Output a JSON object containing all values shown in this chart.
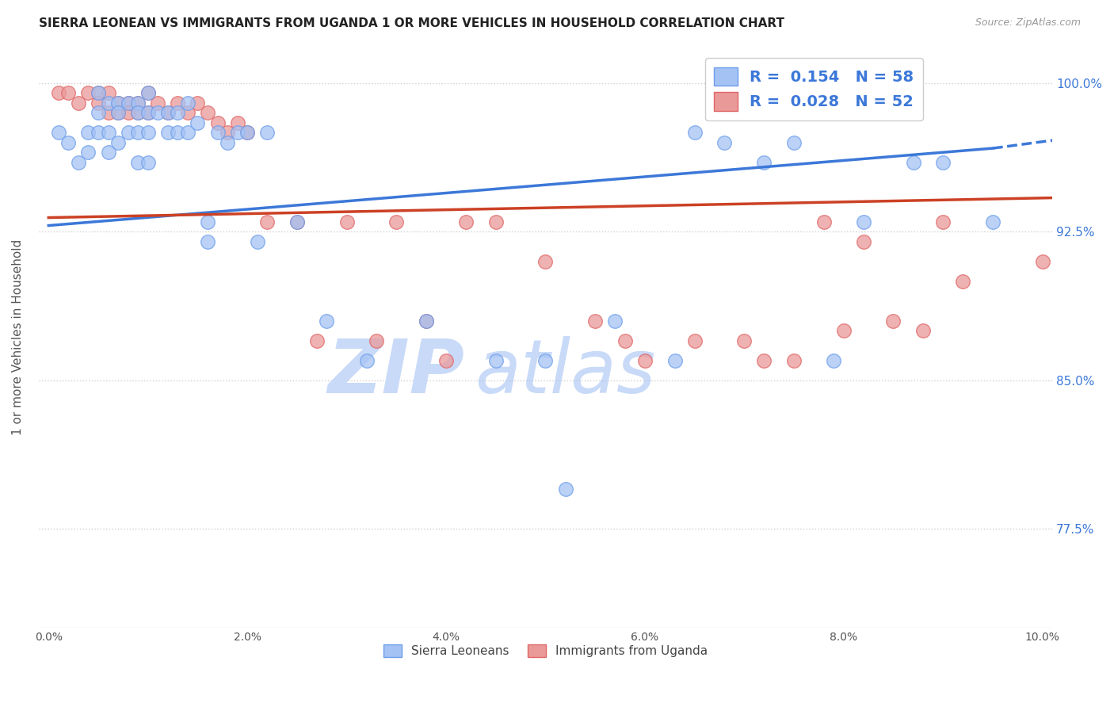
{
  "title": "SIERRA LEONEAN VS IMMIGRANTS FROM UGANDA 1 OR MORE VEHICLES IN HOUSEHOLD CORRELATION CHART",
  "source": "Source: ZipAtlas.com",
  "ylabel": "1 or more Vehicles in Household",
  "ylim": [
    0.725,
    1.018
  ],
  "xlim": [
    -0.001,
    0.101
  ],
  "right_ytick_labels": [
    "77.5%",
    "85.0%",
    "92.5%",
    "100.0%"
  ],
  "right_yticks": [
    0.775,
    0.85,
    0.925,
    1.0
  ],
  "title_fontsize": 11,
  "source_fontsize": 9,
  "blue_color": "#a4c2f4",
  "pink_color": "#ea9999",
  "blue_edge_color": "#6d9eeb",
  "pink_edge_color": "#e06666",
  "blue_line_color": "#3c78d8",
  "pink_line_color": "#cc4125",
  "legend_R1": "0.154",
  "legend_N1": "58",
  "legend_R2": "0.028",
  "legend_N2": "52",
  "blue_scatter_x": [
    0.001,
    0.002,
    0.003,
    0.004,
    0.004,
    0.005,
    0.005,
    0.005,
    0.006,
    0.006,
    0.006,
    0.007,
    0.007,
    0.007,
    0.008,
    0.008,
    0.009,
    0.009,
    0.009,
    0.009,
    0.01,
    0.01,
    0.01,
    0.01,
    0.011,
    0.012,
    0.012,
    0.013,
    0.013,
    0.014,
    0.014,
    0.015,
    0.016,
    0.016,
    0.017,
    0.018,
    0.019,
    0.02,
    0.021,
    0.022,
    0.025,
    0.028,
    0.032,
    0.038,
    0.045,
    0.05,
    0.052,
    0.057,
    0.063,
    0.065,
    0.068,
    0.072,
    0.075,
    0.079,
    0.082,
    0.087,
    0.09,
    0.095
  ],
  "blue_scatter_y": [
    0.975,
    0.97,
    0.96,
    0.975,
    0.965,
    0.995,
    0.985,
    0.975,
    0.99,
    0.975,
    0.965,
    0.99,
    0.985,
    0.97,
    0.99,
    0.975,
    0.99,
    0.985,
    0.975,
    0.96,
    0.995,
    0.985,
    0.975,
    0.96,
    0.985,
    0.985,
    0.975,
    0.985,
    0.975,
    0.99,
    0.975,
    0.98,
    0.93,
    0.92,
    0.975,
    0.97,
    0.975,
    0.975,
    0.92,
    0.975,
    0.93,
    0.88,
    0.86,
    0.88,
    0.86,
    0.86,
    0.795,
    0.88,
    0.86,
    0.975,
    0.97,
    0.96,
    0.97,
    0.86,
    0.93,
    0.96,
    0.96,
    0.93
  ],
  "pink_scatter_x": [
    0.001,
    0.002,
    0.003,
    0.004,
    0.005,
    0.005,
    0.006,
    0.006,
    0.007,
    0.007,
    0.008,
    0.008,
    0.009,
    0.009,
    0.01,
    0.01,
    0.011,
    0.012,
    0.013,
    0.014,
    0.015,
    0.016,
    0.017,
    0.018,
    0.019,
    0.02,
    0.022,
    0.025,
    0.027,
    0.03,
    0.033,
    0.035,
    0.038,
    0.04,
    0.042,
    0.045,
    0.05,
    0.055,
    0.058,
    0.06,
    0.065,
    0.07,
    0.072,
    0.075,
    0.078,
    0.08,
    0.082,
    0.085,
    0.088,
    0.09,
    0.092,
    0.1
  ],
  "pink_scatter_y": [
    0.995,
    0.995,
    0.99,
    0.995,
    0.995,
    0.99,
    0.995,
    0.985,
    0.99,
    0.985,
    0.99,
    0.985,
    0.99,
    0.985,
    0.995,
    0.985,
    0.99,
    0.985,
    0.99,
    0.985,
    0.99,
    0.985,
    0.98,
    0.975,
    0.98,
    0.975,
    0.93,
    0.93,
    0.87,
    0.93,
    0.87,
    0.93,
    0.88,
    0.86,
    0.93,
    0.93,
    0.91,
    0.88,
    0.87,
    0.86,
    0.87,
    0.87,
    0.86,
    0.86,
    0.93,
    0.875,
    0.92,
    0.88,
    0.875,
    0.93,
    0.9,
    0.91
  ],
  "blue_trend_x0": 0.0,
  "blue_trend_x1": 0.095,
  "blue_trend_x2": 0.101,
  "blue_trend_y0": 0.928,
  "blue_trend_y1": 0.967,
  "blue_trend_y2": 0.971,
  "pink_trend_x0": 0.0,
  "pink_trend_x1": 0.101,
  "pink_trend_y0": 0.932,
  "pink_trend_y1": 0.942,
  "watermark_zip": "ZIP",
  "watermark_atlas": "atlas",
  "watermark_color": "#c9daf8",
  "background_color": "#ffffff",
  "grid_color": "#d0d0d0",
  "grid_style": ":"
}
